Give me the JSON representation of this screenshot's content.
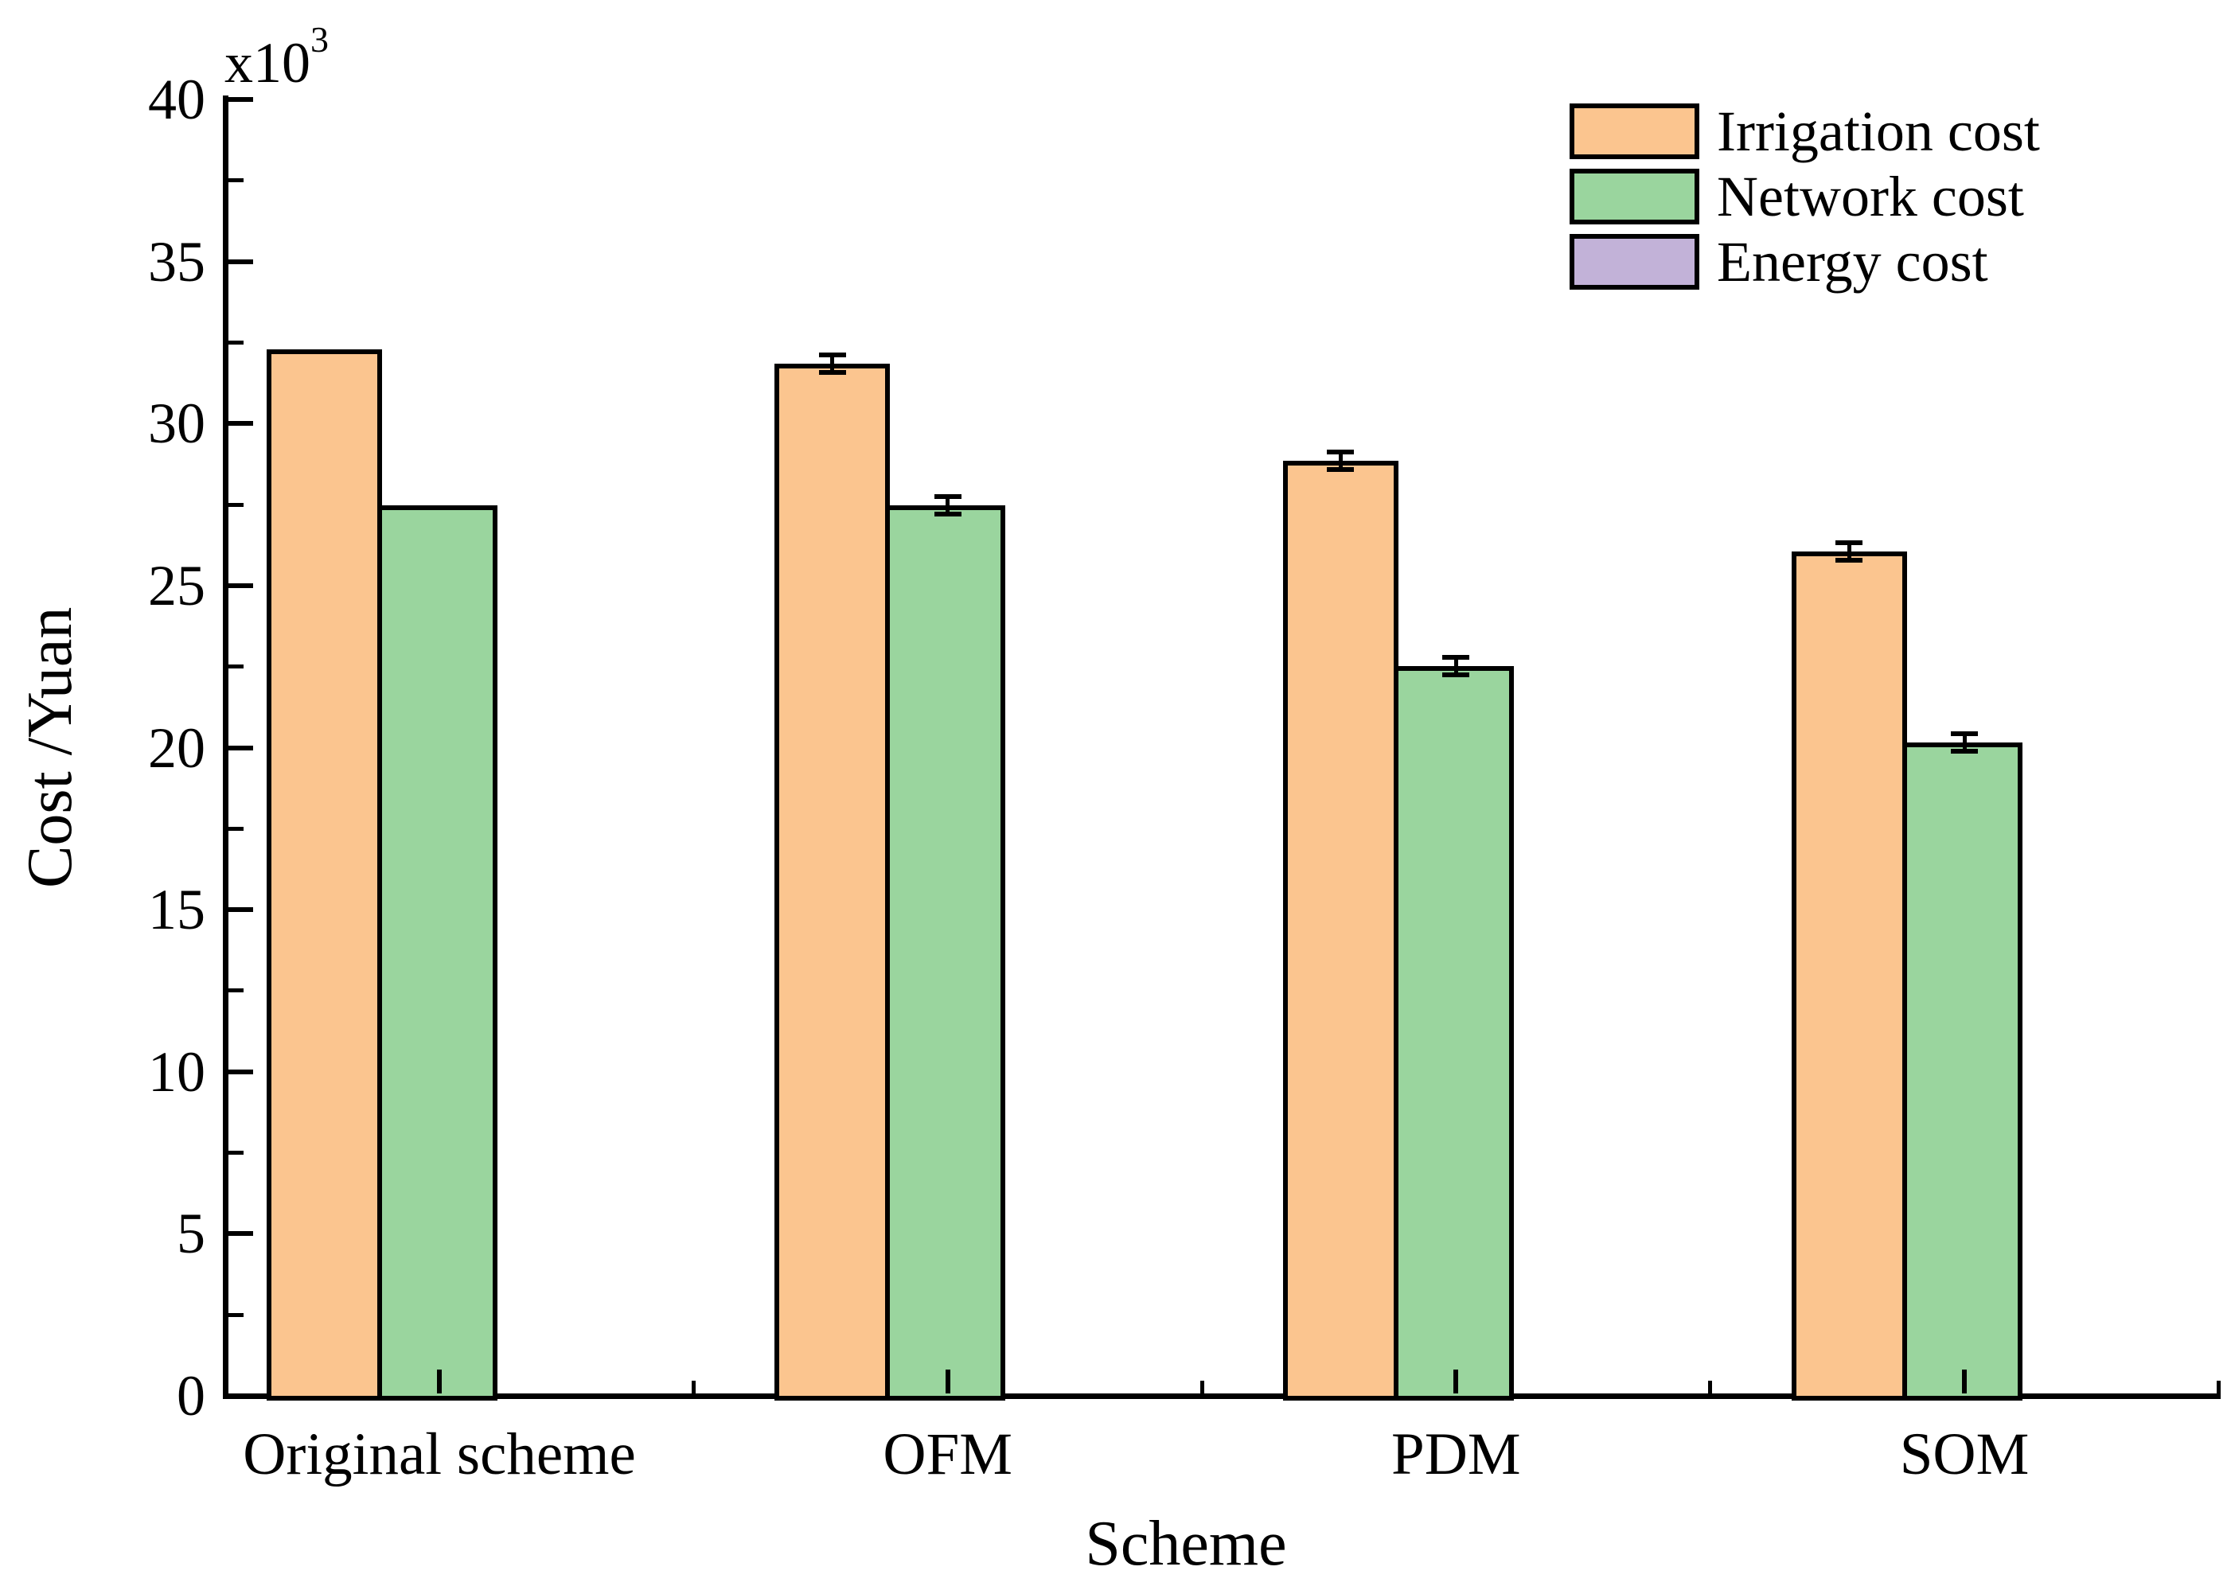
{
  "figure": {
    "y_scale_label": {
      "base": "x10",
      "exp": "3"
    }
  },
  "chart_data": {
    "type": "bar",
    "title": "",
    "xlabel": "Scheme",
    "ylabel": "Cost /Yuan",
    "y_multiplier_label": "x10^3",
    "categories": [
      "Original scheme",
      "OFM",
      "PDM",
      "SOM"
    ],
    "series": [
      {
        "name": "Irrigation cost",
        "color": "#FBC58F",
        "values": [
          32294,
          31845,
          28862,
          26048
        ],
        "errors": [
          null,
          270,
          270,
          270
        ]
      },
      {
        "name": "Network cost",
        "color": "#9AD59E",
        "values": [
          27468,
          27468,
          22507,
          20167
        ],
        "errors": [
          null,
          270,
          270,
          270
        ]
      },
      {
        "name": "Energy cost",
        "color": "#C2B2D8",
        "values": [
          0,
          0,
          0,
          0
        ],
        "errors": [
          null,
          null,
          null,
          null
        ]
      }
    ],
    "ylim": [
      0,
      40000
    ],
    "y_major_tick_step": 5000,
    "y_minor_tick_step": 2500,
    "y_tick_labels": [
      "0",
      "5",
      "10",
      "15",
      "20",
      "25",
      "30",
      "35",
      "40"
    ],
    "grid": false,
    "legend_position": "top-right",
    "data_labels_shown": true,
    "data_label_rotation_deg": 90,
    "axis_color": "#000000",
    "bar_outline_color": "#000000"
  }
}
